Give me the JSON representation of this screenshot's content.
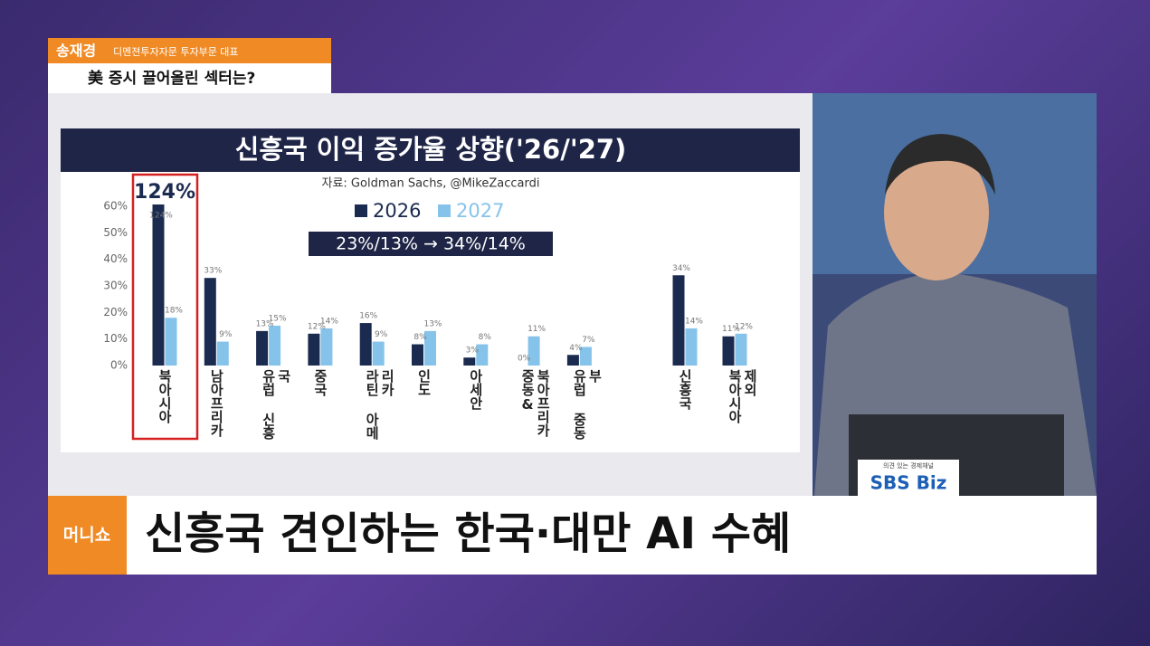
{
  "broadcast": {
    "speaker_name": "송재경",
    "speaker_title": "디멘젼투자자문 투자부문 대표",
    "topic": "美 증시 끌어올린 섹터는?",
    "logo": "머니쇼",
    "headline": "신흥국 견인하는 한국·대만 AI 수혜",
    "channel_slogan": "의견 있는 경제채널",
    "channel": "SBS Biz"
  },
  "chart_data": {
    "type": "bar",
    "title": "신흥국 이익 증가율 상향('26/'27)",
    "source": "자료: Goldman Sachs, @MikeZaccardi",
    "annotation": "23%/13% → 34%/14%",
    "highlight_label": "124%",
    "categories": [
      "북아시아",
      "남아프리카",
      "유럽 신흥국",
      "중국",
      "라틴 아메리카",
      "인도",
      "아세안",
      "중동& 북아프리카",
      "유럽 중동부",
      "신흥국",
      "북아시아 제외"
    ],
    "series": [
      {
        "name": "2026",
        "color": "#1b2b4f",
        "values": [
          124,
          33,
          13,
          12,
          16,
          8,
          3,
          0,
          4,
          34,
          11
        ],
        "value_labels": [
          "124%",
          "33%",
          "13%",
          "12%",
          "16%",
          "8%",
          "3%",
          "0%",
          "4%",
          "34%",
          "11%"
        ]
      },
      {
        "name": "2027",
        "color": "#86c3ea",
        "values": [
          18,
          9,
          15,
          14,
          9,
          13,
          8,
          11,
          7,
          14,
          12
        ],
        "value_labels": [
          "18%",
          "9%",
          "15%",
          "14%",
          "9%",
          "13%",
          "8%",
          "11%",
          "7%",
          "14%",
          "12%"
        ]
      }
    ],
    "ylim": [
      0,
      60
    ],
    "yticks": [
      {
        "value": 0,
        "label": "0%"
      },
      {
        "value": 10,
        "label": "10%"
      },
      {
        "value": 20,
        "label": "20%"
      },
      {
        "value": 30,
        "label": "30%"
      },
      {
        "value": 40,
        "label": "40%"
      },
      {
        "value": 50,
        "label": "50%"
      },
      {
        "value": 60,
        "label": "60%"
      }
    ],
    "legend": "top",
    "grid": false
  }
}
